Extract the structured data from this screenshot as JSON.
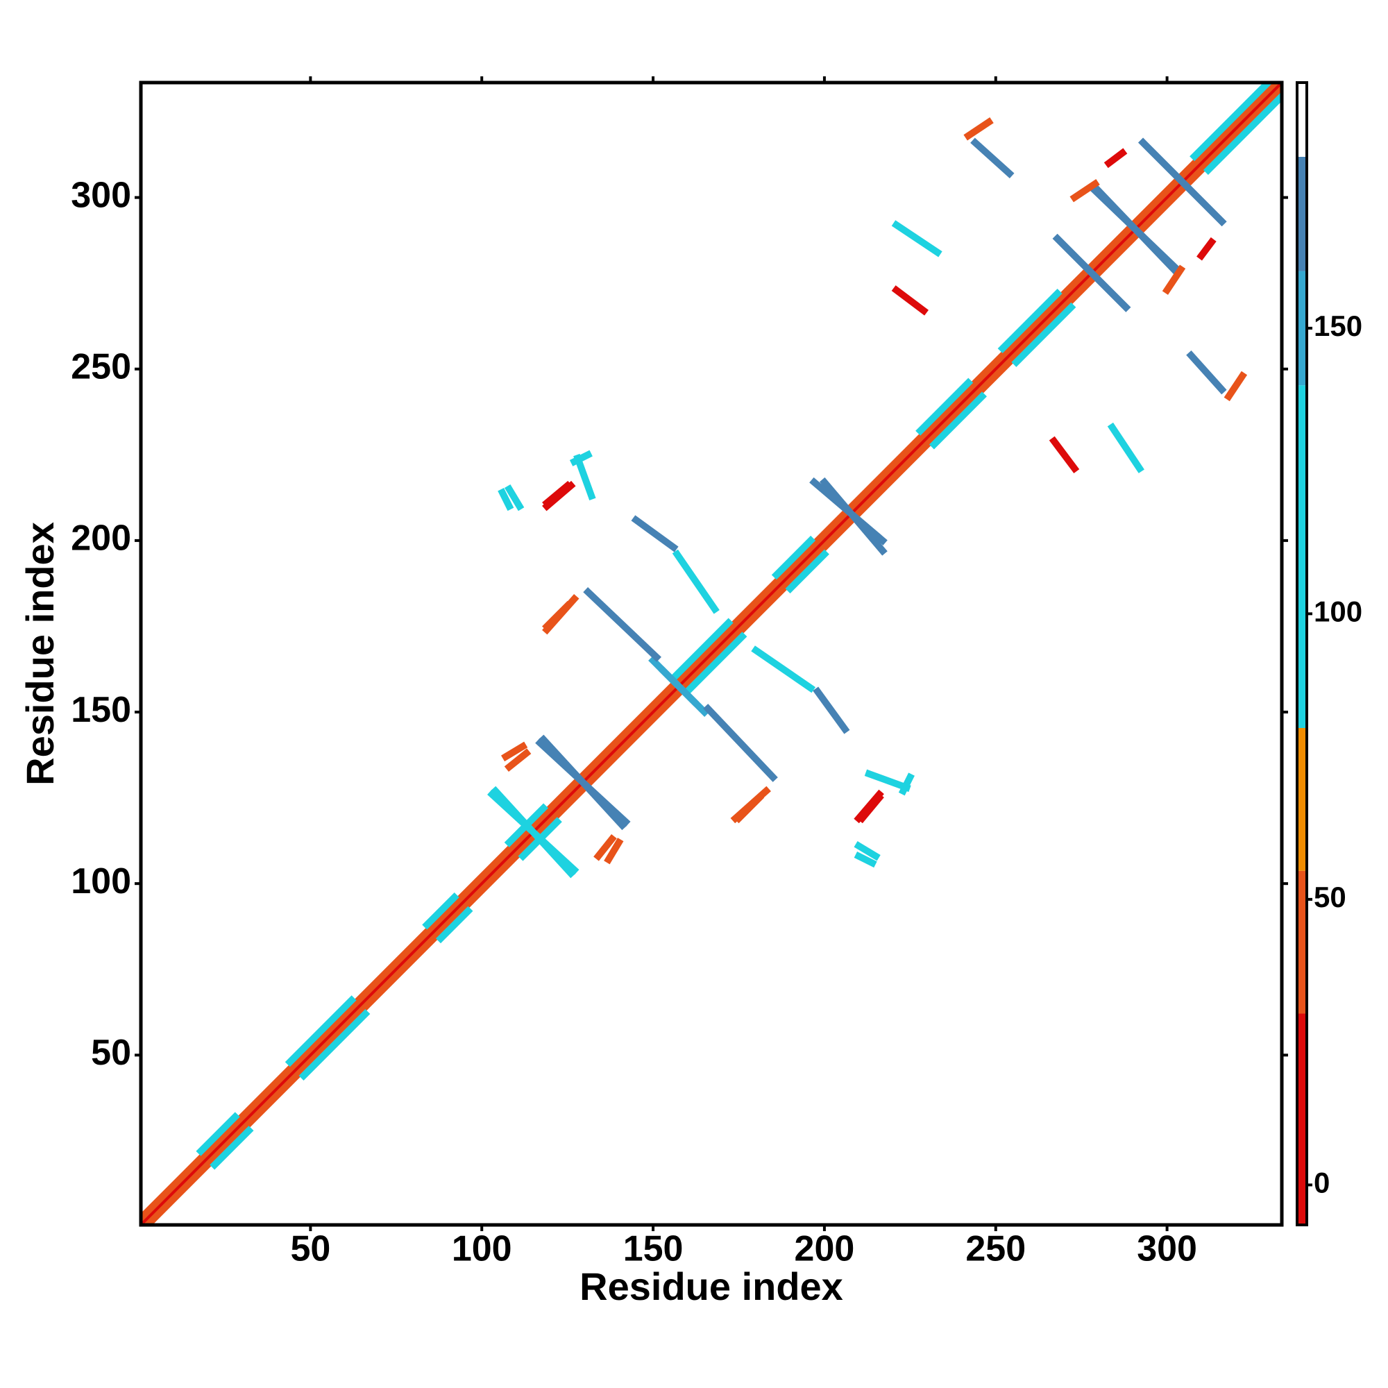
{
  "chart_data": {
    "type": "heatmap",
    "xlabel": "Residue index",
    "ylabel": "Residue index",
    "xlim": [
      0.5,
      333.5
    ],
    "ylim": [
      0.5,
      333.5
    ],
    "xticks": [
      50,
      100,
      150,
      200,
      250,
      300
    ],
    "yticks": [
      50,
      100,
      150,
      200,
      250,
      300
    ],
    "symmetric": true,
    "segments": [
      {
        "x0": 1,
        "y0": 1,
        "x1": 333,
        "y1": 333,
        "value": 8
      },
      {
        "x0": 3,
        "y0": 1,
        "x1": 333,
        "y1": 331,
        "value": 50
      },
      {
        "x0": 22,
        "y0": 18,
        "x1": 32,
        "y1": 28,
        "value": 110
      },
      {
        "x0": 48,
        "y0": 44,
        "x1": 66,
        "y1": 62,
        "value": 110
      },
      {
        "x0": 88,
        "y0": 84,
        "x1": 96,
        "y1": 92,
        "value": 110
      },
      {
        "x0": 112,
        "y0": 108,
        "x1": 122,
        "y1": 118,
        "value": 110
      },
      {
        "x0": 160,
        "y0": 156,
        "x1": 176,
        "y1": 172,
        "value": 110
      },
      {
        "x0": 190,
        "y0": 186,
        "x1": 200,
        "y1": 196,
        "value": 110
      },
      {
        "x0": 232,
        "y0": 228,
        "x1": 246,
        "y1": 242,
        "value": 115
      },
      {
        "x0": 256,
        "y0": 252,
        "x1": 272,
        "y1": 268,
        "value": 115
      },
      {
        "x0": 312,
        "y0": 308,
        "x1": 333,
        "y1": 329,
        "value": 120
      },
      {
        "x0": 118,
        "y0": 142,
        "x1": 141,
        "y1": 117,
        "value": 170
      },
      {
        "x0": 200,
        "y0": 217,
        "x1": 217,
        "y1": 197,
        "value": 170
      },
      {
        "x0": 268,
        "y0": 288,
        "x1": 288,
        "y1": 268,
        "value": 170
      },
      {
        "x0": 279,
        "y0": 302,
        "x1": 303,
        "y1": 279,
        "value": 170
      },
      {
        "x0": 293,
        "y0": 316,
        "x1": 316,
        "y1": 293,
        "value": 170
      },
      {
        "x0": 104,
        "y0": 127,
        "x1": 126,
        "y1": 103,
        "value": 110
      },
      {
        "x0": 150,
        "y0": 165,
        "x1": 162,
        "y1": 153,
        "value": 150
      },
      {
        "x0": 131,
        "y0": 185,
        "x1": 151,
        "y1": 166,
        "value": 170
      },
      {
        "x0": 145,
        "y0": 206,
        "x1": 156,
        "y1": 198,
        "value": 165
      },
      {
        "x0": 157,
        "y0": 196,
        "x1": 168,
        "y1": 180,
        "value": 110
      },
      {
        "x0": 244,
        "y0": 316,
        "x1": 254,
        "y1": 307,
        "value": 165
      },
      {
        "x0": 221,
        "y0": 292,
        "x1": 233,
        "y1": 284,
        "value": 110
      },
      {
        "x0": 221,
        "y0": 273,
        "x1": 229,
        "y1": 267,
        "value": 15
      },
      {
        "x0": 106,
        "y0": 214,
        "x1": 108,
        "y1": 210,
        "value": 120
      },
      {
        "x0": 119,
        "y0": 211,
        "x1": 125,
        "y1": 216,
        "value": 12
      },
      {
        "x0": 119,
        "y0": 175,
        "x1": 125,
        "y1": 181,
        "value": 45
      },
      {
        "x0": 174,
        "y0": 119,
        "x1": 183,
        "y1": 127,
        "value": 45
      },
      {
        "x0": 210,
        "y0": 119,
        "x1": 216,
        "y1": 126,
        "value": 12
      },
      {
        "x0": 210,
        "y0": 111,
        "x1": 215,
        "y1": 108,
        "value": 115
      },
      {
        "x0": 213,
        "y0": 132,
        "x1": 224,
        "y1": 128,
        "value": 110
      },
      {
        "x0": 134,
        "y0": 108,
        "x1": 138,
        "y1": 113,
        "value": 55
      },
      {
        "x0": 107,
        "y0": 137,
        "x1": 112,
        "y1": 140,
        "value": 55
      },
      {
        "x0": 127,
        "y0": 223,
        "x1": 131,
        "y1": 225,
        "value": 110
      },
      {
        "x0": 242,
        "y0": 318,
        "x1": 248,
        "y1": 322,
        "value": 55
      },
      {
        "x0": 273,
        "y0": 300,
        "x1": 279,
        "y1": 304,
        "value": 55
      },
      {
        "x0": 283,
        "y0": 310,
        "x1": 287,
        "y1": 313,
        "value": 15
      }
    ],
    "colorbar": {
      "lim": [
        -7,
        193
      ],
      "ticks": [
        0,
        50,
        100,
        150
      ],
      "bounds": [
        -7,
        30,
        55,
        80,
        140,
        160,
        180,
        193
      ],
      "colors": [
        "#dd0a0a",
        "#e8531a",
        "#f08c00",
        "#1ed2e0",
        "#35a8d0",
        "#4682b4",
        "#ffffff"
      ]
    }
  }
}
